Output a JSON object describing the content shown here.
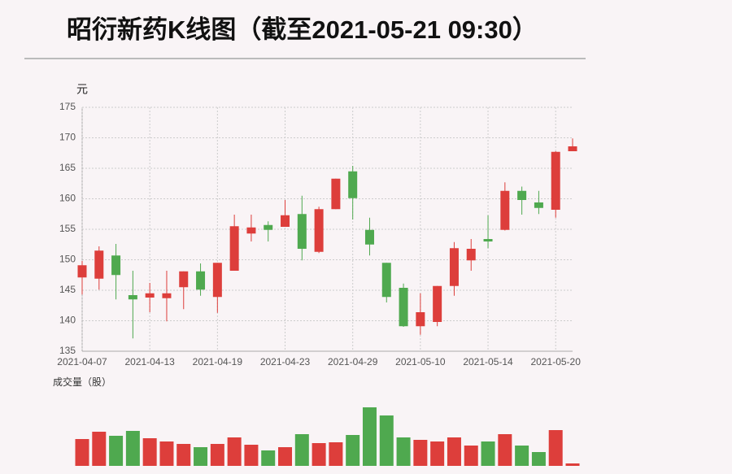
{
  "chart_data": {
    "type": "candlestick",
    "title": "昭衍新药K线图（截至2021-05-21 09:30）",
    "y_label": "元",
    "volume_label": "成交量（股）",
    "categories": [
      "2021-04-07",
      null,
      null,
      null,
      "2021-04-13",
      null,
      null,
      null,
      "2021-04-19",
      null,
      null,
      null,
      "2021-04-23",
      null,
      null,
      null,
      "2021-04-29",
      null,
      null,
      null,
      "2021-05-10",
      null,
      null,
      null,
      "2021-05-14",
      null,
      null,
      null,
      "2021-05-20",
      null
    ],
    "open": [
      147.1,
      146.9,
      150.7,
      144.2,
      143.8,
      143.7,
      145.5,
      148.1,
      143.9,
      148.2,
      154.3,
      155.7,
      155.4,
      157.5,
      151.3,
      158.3,
      164.5,
      154.9,
      149.5,
      145.4,
      139.1,
      139.8,
      145.7,
      149.9,
      153.4,
      154.9,
      161.3,
      159.4,
      158.2,
      167.8
    ],
    "high": [
      149.8,
      152.2,
      152.6,
      148.2,
      146.2,
      148.2,
      148.1,
      149.4,
      149.5,
      157.4,
      157.4,
      156.3,
      159.8,
      160.5,
      158.7,
      163.3,
      165.4,
      156.9,
      149.5,
      146.1,
      144.5,
      145.7,
      152.9,
      153.4,
      157.3,
      162.7,
      162.0,
      161.3,
      167.8,
      169.9
    ],
    "low": [
      144.3,
      145.1,
      143.5,
      137.1,
      141.4,
      139.9,
      141.9,
      144.1,
      141.3,
      148.2,
      153.0,
      153.0,
      155.4,
      149.9,
      151.1,
      158.3,
      156.6,
      150.7,
      143.0,
      139.0,
      137.7,
      139.1,
      144.1,
      148.2,
      151.9,
      154.8,
      157.4,
      157.5,
      156.9,
      167.8
    ],
    "close": [
      149.1,
      151.5,
      147.5,
      143.5,
      144.5,
      144.5,
      148.1,
      145.1,
      149.5,
      155.5,
      155.3,
      154.9,
      157.3,
      151.8,
      158.3,
      163.3,
      160.1,
      152.5,
      143.9,
      139.1,
      141.4,
      145.7,
      151.9,
      151.8,
      153.0,
      161.3,
      159.8,
      158.5,
      167.7,
      168.6
    ],
    "volume": [
      33,
      42,
      37,
      43,
      34,
      30,
      27,
      23,
      27,
      35,
      26,
      19,
      23,
      39,
      28,
      29,
      38,
      72,
      62,
      35,
      32,
      30,
      35,
      25,
      30,
      39,
      25,
      17,
      44,
      3
    ],
    "up_color": "#dd3e3b",
    "down_color": "#4fa94f",
    "ylim": [
      135,
      175
    ],
    "yticks": [
      135,
      140,
      145,
      150,
      155,
      160,
      165,
      170,
      175
    ],
    "grid": true
  }
}
